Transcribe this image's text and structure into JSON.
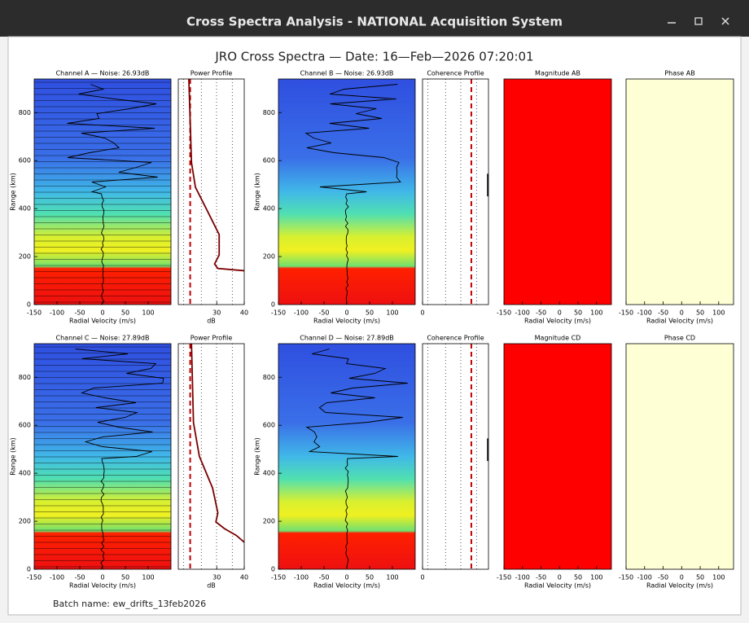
{
  "window": {
    "title": "Cross Spectra Analysis - NATIONAL Acquisition System"
  },
  "figure": {
    "title": "JRO Cross Spectra — Date: 16—Feb—2026 07:20:01",
    "batch": "Batch name: ew_drifts_13feb2026"
  },
  "rows": [
    {
      "panels": [
        {
          "kind": "spectra",
          "title": "Channel A — Noise: 26.93dB",
          "xlabel": "Radial Velocity (m/s)",
          "ylabel": "Range (km)",
          "xlim": [
            -150,
            150
          ],
          "xticks": [
            -150,
            -100,
            -50,
            0,
            50,
            100
          ],
          "ylim": [
            0,
            940
          ],
          "yticks": [
            0,
            200,
            400,
            600,
            800
          ],
          "lines": true
        },
        {
          "kind": "power",
          "title": "Power Profile",
          "xlabel": "dB",
          "xlim": [
            16,
            40
          ],
          "xticks": [
            30,
            40
          ]
        },
        {
          "kind": "spectra",
          "title": "Channel B — Noise: 26.93dB",
          "xlabel": "Radial Velocity (m/s)",
          "ylabel": "Range (km)",
          "xlim": [
            -150,
            150
          ],
          "xticks": [
            -150,
            -100,
            -50,
            0,
            50,
            100
          ],
          "ylim": [
            0,
            940
          ],
          "yticks": [
            0,
            200,
            400,
            600,
            800
          ],
          "lines": false
        },
        {
          "kind": "coherence",
          "title": "Coherence Profile",
          "xlim": [
            0,
            1
          ],
          "xticks": [
            0
          ]
        },
        {
          "kind": "magnitude",
          "title": "Magnitude AB",
          "xlabel": "Radial Velocity (m/s)",
          "xlim": [
            -150,
            140
          ],
          "xticks": [
            -150,
            -100,
            -50,
            0,
            50,
            100
          ]
        },
        {
          "kind": "phase",
          "title": "Phase AB",
          "xlabel": "Radial Velocity (m/s)",
          "xlim": [
            -150,
            140
          ],
          "xticks": [
            -150,
            -100,
            -50,
            0,
            50,
            100
          ]
        }
      ]
    },
    {
      "panels": [
        {
          "kind": "spectra",
          "title": "Channel C — Noise: 27.89dB",
          "xlabel": "Radial Velocity (m/s)",
          "ylabel": "Range (km)",
          "xlim": [
            -150,
            150
          ],
          "xticks": [
            -150,
            -100,
            -50,
            0,
            50,
            100
          ],
          "ylim": [
            0,
            940
          ],
          "yticks": [
            0,
            200,
            400,
            600,
            800
          ],
          "lines": true
        },
        {
          "kind": "power",
          "title": "Power Profile",
          "xlabel": "dB",
          "xlim": [
            16,
            40
          ],
          "xticks": [
            30,
            40
          ]
        },
        {
          "kind": "spectra",
          "title": "Channel D — Noise: 27.89dB",
          "xlabel": "Radial Velocity (m/s)",
          "ylabel": "Range (km)",
          "xlim": [
            -150,
            150
          ],
          "xticks": [
            -150,
            -100,
            -50,
            0,
            50,
            100
          ],
          "ylim": [
            0,
            940
          ],
          "yticks": [
            0,
            200,
            400,
            600,
            800
          ],
          "lines": false
        },
        {
          "kind": "coherence",
          "title": "Coherence Profile",
          "xlim": [
            0,
            1
          ],
          "xticks": [
            0
          ]
        },
        {
          "kind": "magnitude",
          "title": "Magnitude CD",
          "xlabel": "Radial Velocity (m/s)",
          "xlim": [
            -150,
            140
          ],
          "xticks": [
            -150,
            -100,
            -50,
            0,
            50,
            100
          ]
        },
        {
          "kind": "phase",
          "title": "Phase CD",
          "xlabel": "Radial Velocity (m/s)",
          "xlim": [
            -150,
            140
          ],
          "xticks": [
            -150,
            -100,
            -50,
            0,
            50,
            100
          ]
        }
      ]
    }
  ]
}
